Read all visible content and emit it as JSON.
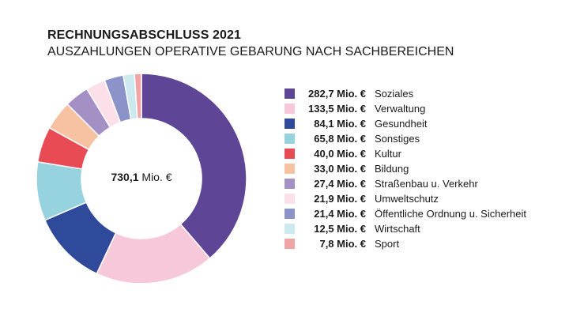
{
  "chart_data": {
    "type": "pie",
    "donut": true,
    "title": "RECHNUNGSABSCHLUSS 2021",
    "subtitle": "AUSZAHLUNGEN OPERATIVE GEBARUNG NACH SACHBEREICHEN",
    "center_label": {
      "value": "730,1",
      "unit": "Mio. €"
    },
    "legend_position": "right",
    "series": [
      {
        "name": "Soziales",
        "value": 282.7,
        "label": "282,7 Mio. €",
        "color": "#5e4596"
      },
      {
        "name": "Verwaltung",
        "value": 133.5,
        "label": "133,5 Mio. €",
        "color": "#f6c8da"
      },
      {
        "name": "Gesundheit",
        "value": 84.1,
        "label": "84,1 Mio. €",
        "color": "#2f4a9a"
      },
      {
        "name": "Sonstiges",
        "value": 65.8,
        "label": "65,8 Mio. €",
        "color": "#96d3de"
      },
      {
        "name": "Kultur",
        "value": 40.0,
        "label": "40,0 Mio. €",
        "color": "#e94b55"
      },
      {
        "name": "Bildung",
        "value": 33.0,
        "label": "33,0 Mio. €",
        "color": "#f6c2a2"
      },
      {
        "name": "Straßenbau u. Verkehr",
        "value": 27.4,
        "label": "27,4 Mio. €",
        "color": "#a590c6"
      },
      {
        "name": "Umweltschutz",
        "value": 21.9,
        "label": "21,9 Mio. €",
        "color": "#fbe0ea"
      },
      {
        "name": "Öffentliche Ordnung u. Sicherheit",
        "value": 21.4,
        "label": "21,4 Mio. €",
        "color": "#8b93c9"
      },
      {
        "name": "Wirtschaft",
        "value": 12.5,
        "label": "12,5 Mio. €",
        "color": "#cbe9ef"
      },
      {
        "name": "Sport",
        "value": 7.8,
        "label": "7,8 Mio. €",
        "color": "#f0a4a4"
      }
    ]
  }
}
